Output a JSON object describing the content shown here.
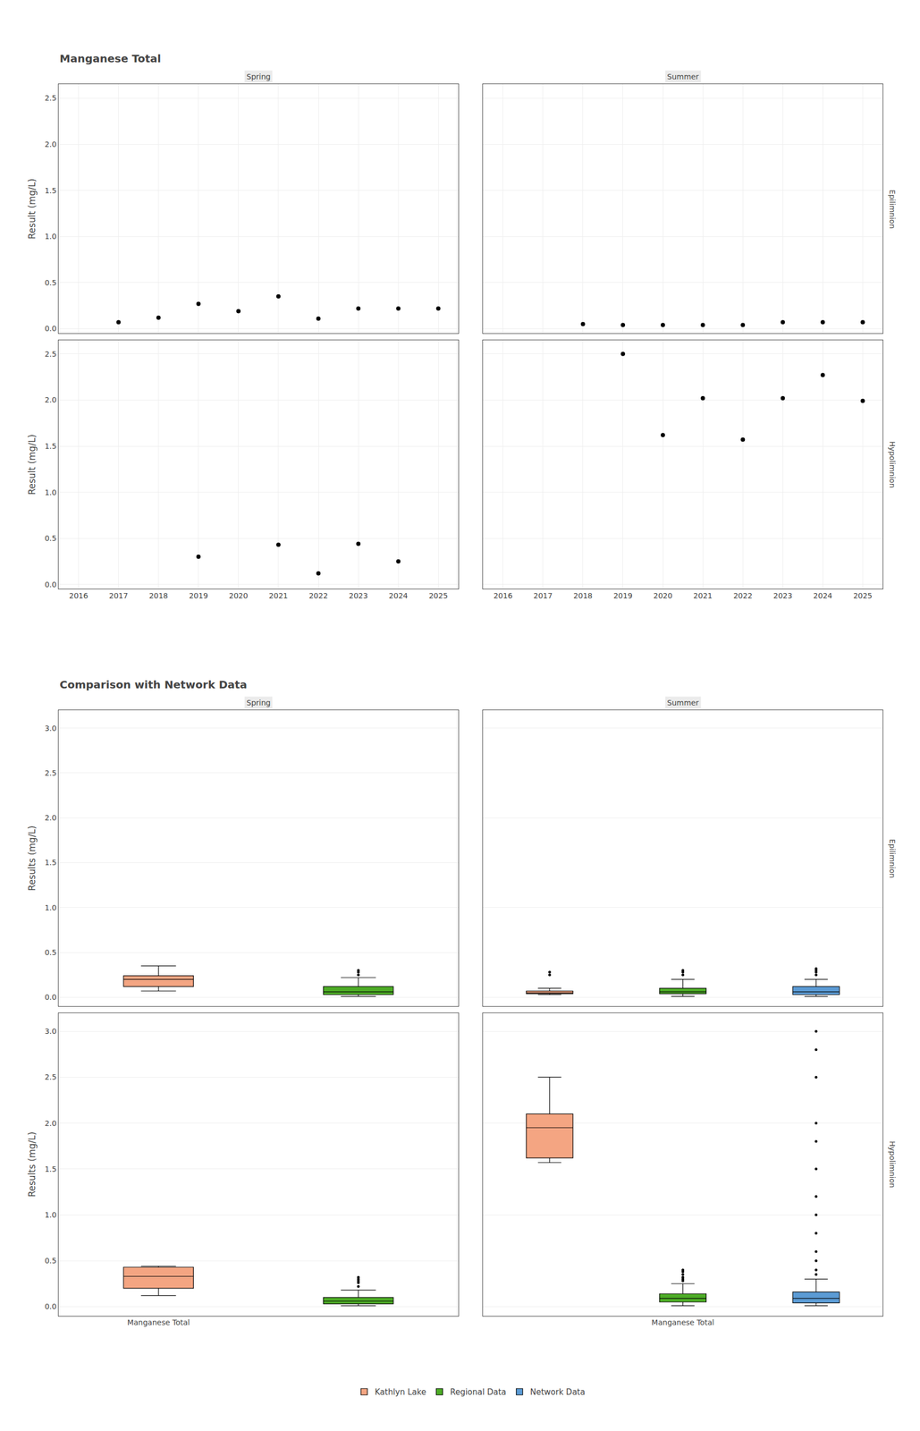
{
  "chart_data": [
    {
      "type": "scatter",
      "title": "Manganese Total",
      "subtitle": "Spring",
      "x": [
        2017,
        2018,
        2019,
        2020,
        2021,
        2022,
        2023,
        2024,
        2025
      ],
      "values": [
        0.07,
        0.12,
        0.27,
        0.19,
        0.35,
        0.11,
        0.22,
        0.22,
        0.22
      ],
      "color": "black",
      "xlim": [
        2015.5,
        2025.5
      ],
      "ylim": [
        -0.05,
        2.65
      ],
      "xticks": [
        2016,
        2017,
        2018,
        2019,
        2020,
        2021,
        2022,
        2023,
        2024,
        2025
      ],
      "yticks": [
        {
          "value": 0,
          "label": "0.0"
        },
        0.5,
        {
          "value": 1,
          "label": "1.0"
        },
        1.5,
        {
          "value": 2,
          "label": "2.0"
        },
        2.5
      ],
      "ylabel": "Result (mg/L)",
      "grid": true,
      "tick_labels": "y"
    },
    {
      "type": "scatter",
      "subtitle": "Summer",
      "annotations": [
        "Epilimnion"
      ],
      "x": [
        2018,
        2019,
        2020,
        2021,
        2022,
        2023,
        2024,
        2025
      ],
      "values": [
        0.05,
        0.04,
        0.04,
        0.04,
        0.04,
        0.07,
        0.07,
        0.07
      ],
      "color": "black",
      "xlim": [
        2015.5,
        2025.5
      ],
      "ylim": [
        -0.05,
        2.65
      ],
      "xticks": [
        2016,
        2017,
        2018,
        2019,
        2020,
        2021,
        2022,
        2023,
        2024,
        2025
      ],
      "yticks": [
        0,
        0.5,
        1,
        1.5,
        2,
        2.5
      ],
      "grid": true,
      "tick_labels": false
    },
    {
      "type": "scatter",
      "x": [
        2019,
        2021,
        2022,
        2023,
        2024
      ],
      "values": [
        0.3,
        0.43,
        0.12,
        0.44,
        0.25
      ],
      "color": "black",
      "xlim": [
        2015.5,
        2025.5
      ],
      "ylim": [
        -0.05,
        2.65
      ],
      "xticks": [
        2016,
        2017,
        2018,
        2019,
        2020,
        2021,
        2022,
        2023,
        2024,
        2025
      ],
      "yticks": [
        {
          "value": 0,
          "label": "0.0"
        },
        0.5,
        {
          "value": 1,
          "label": "1.0"
        },
        1.5,
        {
          "value": 2,
          "label": "2.0"
        },
        2.5
      ],
      "ylabel": "Result (mg/L)",
      "grid": true
    },
    {
      "type": "scatter",
      "annotations": [
        "Hypolimnion"
      ],
      "x": [
        2019,
        2020,
        2021,
        2022,
        2023,
        2024,
        2025
      ],
      "values": [
        2.5,
        1.62,
        2.02,
        1.57,
        2.02,
        2.27,
        1.99
      ],
      "color": "black",
      "xlim": [
        2015.5,
        2025.5
      ],
      "ylim": [
        -0.05,
        2.65
      ],
      "xticks": [
        2016,
        2017,
        2018,
        2019,
        2020,
        2021,
        2022,
        2023,
        2024,
        2025
      ],
      "yticks": [
        0,
        0.5,
        1,
        1.5,
        2,
        2.5
      ],
      "grid": true,
      "tick_labels": "x"
    },
    {
      "type": "box",
      "title": "Comparison with Network Data",
      "subtitle": "Spring",
      "categories": [
        null,
        null
      ],
      "series": [
        {
          "name": "Kathlyn Lake",
          "color": "#f4a582",
          "q1": 0.12,
          "median": 0.2,
          "q3": 0.24,
          "whislo": 0.07,
          "whishi": 0.35,
          "fliers": []
        },
        {
          "name": "Regional Data",
          "color": "#4dac26",
          "q1": 0.03,
          "median": 0.06,
          "q3": 0.12,
          "whislo": 0.01,
          "whishi": 0.22,
          "fliers": [
            0.25,
            0.28,
            0.3
          ]
        }
      ],
      "ylim": [
        -0.1,
        3.2
      ],
      "yticks": [
        {
          "value": 0,
          "label": "0.0"
        },
        0.5,
        {
          "value": 1,
          "label": "1.0"
        },
        1.5,
        {
          "value": 2,
          "label": "2.0"
        },
        2.5,
        {
          "value": 3,
          "label": "3.0"
        }
      ],
      "ylabel": "Results (mg/L)",
      "grid": "y",
      "tick_labels": "y",
      "legend": "bottom"
    },
    {
      "type": "box",
      "subtitle": "Summer",
      "annotations": [
        "Epilimnion"
      ],
      "categories": [
        null,
        null,
        null
      ],
      "series": [
        {
          "name": "Kathlyn Lake",
          "color": "#f4a582",
          "q1": 0.04,
          "median": 0.05,
          "q3": 0.07,
          "whislo": 0.03,
          "whishi": 0.1,
          "fliers": [
            0.25,
            0.28
          ]
        },
        {
          "name": "Regional Data",
          "color": "#4dac26",
          "q1": 0.04,
          "median": 0.06,
          "q3": 0.1,
          "whislo": 0.01,
          "whishi": 0.2,
          "fliers": [
            0.25,
            0.28,
            0.3
          ]
        },
        {
          "name": "Network Data",
          "color": "#5b9bd5",
          "q1": 0.03,
          "median": 0.06,
          "q3": 0.12,
          "whislo": 0.01,
          "whishi": 0.2,
          "fliers": [
            0.25,
            0.28,
            0.3,
            0.32
          ]
        }
      ],
      "ylim": [
        -0.1,
        3.2
      ],
      "yticks": [
        0,
        1,
        2,
        3
      ],
      "grid": "y",
      "tick_labels": false,
      "legend": "bottom"
    },
    {
      "type": "box",
      "categories": [
        "Manganese Total",
        null
      ],
      "series": [
        {
          "name": "Kathlyn Lake",
          "color": "#f4a582",
          "q1": 0.2,
          "median": 0.33,
          "q3": 0.43,
          "whislo": 0.12,
          "whishi": 0.44,
          "fliers": []
        },
        {
          "name": "Regional Data",
          "color": "#4dac26",
          "q1": 0.03,
          "median": 0.06,
          "q3": 0.1,
          "whislo": 0.01,
          "whishi": 0.18,
          "fliers": [
            0.22,
            0.26,
            0.28,
            0.3,
            0.32
          ]
        }
      ],
      "ylim": [
        -0.1,
        3.2
      ],
      "yticks": [
        {
          "value": 0,
          "label": "0.0"
        },
        0.5,
        {
          "value": 1,
          "label": "1.0"
        },
        1.5,
        {
          "value": 2,
          "label": "2.0"
        },
        2.5,
        {
          "value": 3,
          "label": "3.0"
        }
      ],
      "ylabel": "Results (mg/L)",
      "grid": "y",
      "legend": "bottom"
    },
    {
      "type": "box",
      "annotations": [
        "Hypolimnion"
      ],
      "categories": [
        null,
        "Manganese Total",
        null
      ],
      "series": [
        {
          "name": "Kathlyn Lake",
          "color": "#f4a582",
          "q1": 1.62,
          "median": 1.95,
          "q3": 2.1,
          "whislo": 1.57,
          "whishi": 2.5,
          "fliers": []
        },
        {
          "name": "Regional Data",
          "color": "#4dac26",
          "q1": 0.05,
          "median": 0.09,
          "q3": 0.14,
          "whislo": 0.01,
          "whishi": 0.25,
          "fliers": [
            0.28,
            0.3,
            0.32,
            0.35,
            0.38,
            0.4
          ]
        },
        {
          "name": "Network Data",
          "color": "#5b9bd5",
          "q1": 0.04,
          "median": 0.09,
          "q3": 0.16,
          "whislo": 0.01,
          "whishi": 0.3,
          "fliers": [
            0.35,
            0.4,
            0.5,
            0.6,
            0.8,
            1.0,
            1.2,
            1.5,
            1.8,
            2.0,
            2.5,
            2.8,
            3.0
          ]
        }
      ],
      "ylim": [
        -0.1,
        3.2
      ],
      "yticks": [
        0,
        1,
        2,
        3
      ],
      "grid": "y",
      "tick_labels": "x",
      "legend": "bottom"
    }
  ]
}
